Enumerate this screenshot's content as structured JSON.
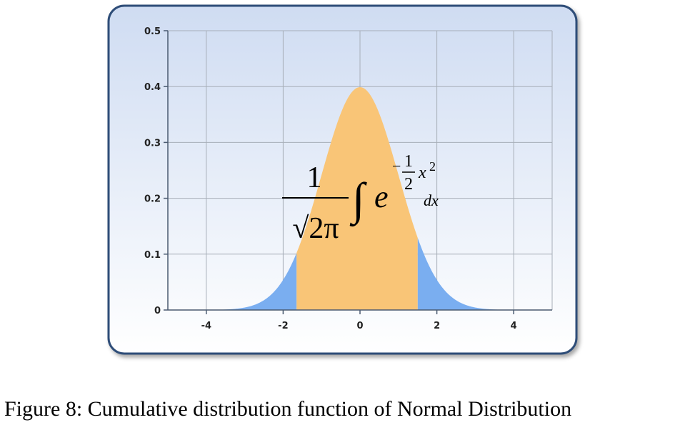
{
  "chart_data": {
    "type": "area",
    "function": "standard normal probability density",
    "x_range": [
      -5,
      5
    ],
    "ylim": [
      0,
      0.5
    ],
    "x_ticks": [
      -4,
      -2,
      0,
      2,
      4
    ],
    "y_ticks": [
      0,
      0.1,
      0.2,
      0.3,
      0.4,
      0.5
    ],
    "y_tick_labels": [
      "0",
      "0.1",
      "0.2",
      "0.3",
      "0.4",
      "0.5"
    ],
    "shaded_interval": [
      -1.65,
      1.5
    ],
    "grid": true,
    "colors": {
      "center_fill": "#f9c577",
      "tail_fill": "#7aaef0",
      "frame_border": "#2f4d78",
      "gradient_top": "#cfdcf2",
      "gradient_bottom": "#ffffff"
    }
  },
  "formula": {
    "numerator": "1",
    "denominator": "√2π",
    "integral": "∫",
    "base": "e",
    "exp_minus": "−",
    "exp_num": "1",
    "exp_den": "2",
    "exp_var": "x",
    "exp_pow": "2",
    "differential": "dx"
  },
  "caption": "Figure 8: Cumulative distribution function of Normal Distribution"
}
